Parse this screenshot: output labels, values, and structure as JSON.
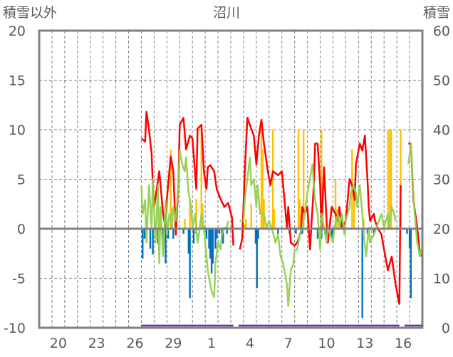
{
  "chart_data": {
    "type": "line",
    "title": "沼川",
    "left_axis_label": "積雪以外",
    "right_axis_label": "積雪",
    "ylim": [
      -10,
      20
    ],
    "y2lim": [
      0,
      60
    ],
    "yticks": [
      "20",
      "15",
      "10",
      "5",
      "0",
      "-5",
      "-10"
    ],
    "y2ticks": [
      "60",
      "50",
      "40",
      "30",
      "20",
      "10",
      "0"
    ],
    "xlim_days": [
      0,
      30
    ],
    "xtick_labels": [
      {
        "day": 1.5,
        "label": "20"
      },
      {
        "day": 4.5,
        "label": "23"
      },
      {
        "day": 7.5,
        "label": "26"
      },
      {
        "day": 10.5,
        "label": "29"
      },
      {
        "day": 13.5,
        "label": "1"
      },
      {
        "day": 16.5,
        "label": "4"
      },
      {
        "day": 19.5,
        "label": "7"
      },
      {
        "day": 22.5,
        "label": "10"
      },
      {
        "day": 25.5,
        "label": "13"
      },
      {
        "day": 28.5,
        "label": "16"
      }
    ],
    "grid": true,
    "colors": {
      "red": "#ff0000",
      "green": "#92d050",
      "blue": "#0070c0",
      "orange": "#ffc000",
      "purple": "#7030a0",
      "axis": "#808080"
    },
    "series": [
      {
        "name": "red-line",
        "color": "#ff0000",
        "points": [
          [
            8.0,
            9.1
          ],
          [
            8.3,
            8.8
          ],
          [
            8.4,
            11.8
          ],
          [
            8.6,
            10.0
          ],
          [
            8.8,
            7.6
          ],
          [
            8.9,
            4.4
          ],
          [
            9.0,
            2.2
          ],
          [
            9.4,
            5.8
          ],
          [
            9.5,
            4.4
          ],
          [
            9.7,
            1.5
          ],
          [
            9.9,
            0.0
          ],
          [
            10.0,
            3.0
          ],
          [
            10.3,
            7.3
          ],
          [
            10.5,
            5.8
          ],
          [
            10.7,
            -0.6
          ],
          [
            10.9,
            4.4
          ],
          [
            11.0,
            10.5
          ],
          [
            11.3,
            11.2
          ],
          [
            11.5,
            8.0
          ],
          [
            11.8,
            9.4
          ],
          [
            12.0,
            9.1
          ],
          [
            12.3,
            4.0
          ],
          [
            12.4,
            10.1
          ],
          [
            12.7,
            10.5
          ],
          [
            12.9,
            5.8
          ],
          [
            13.1,
            4.0
          ],
          [
            13.2,
            6.2
          ],
          [
            13.4,
            6.4
          ],
          [
            13.7,
            5.8
          ],
          [
            13.9,
            4.0
          ],
          [
            14.2,
            3.0
          ],
          [
            14.5,
            2.2
          ],
          [
            14.8,
            2.6
          ],
          [
            15.1,
            1.1
          ],
          [
            15.2,
            -1.7
          ],
          null,
          [
            15.7,
            -2.1
          ],
          [
            15.9,
            -1.0
          ],
          [
            16.1,
            5.8
          ],
          [
            16.3,
            11.2
          ],
          [
            16.6,
            10.1
          ],
          [
            16.8,
            9.4
          ],
          [
            17.0,
            6.5
          ],
          [
            17.2,
            9.4
          ],
          [
            17.4,
            11.0
          ],
          [
            17.6,
            8.6
          ],
          [
            17.9,
            5.8
          ],
          [
            18.1,
            4.4
          ],
          [
            18.3,
            5.8
          ],
          [
            18.7,
            5.4
          ],
          [
            19.0,
            5.8
          ],
          [
            19.2,
            3.0
          ],
          [
            19.4,
            0.1
          ],
          [
            19.5,
            2.2
          ],
          [
            19.7,
            -1.4
          ],
          [
            20.0,
            -1.7
          ],
          [
            20.2,
            -1.4
          ],
          [
            20.5,
            -0.3
          ],
          [
            20.6,
            2.2
          ],
          [
            20.8,
            1.5
          ],
          [
            21.0,
            2.2
          ],
          [
            21.2,
            -2.1
          ],
          [
            21.5,
            4.4
          ],
          [
            21.6,
            8.6
          ],
          [
            21.8,
            8.6
          ],
          [
            22.0,
            4.4
          ],
          [
            22.1,
            0.1
          ],
          [
            22.3,
            6.2
          ],
          [
            22.5,
            0.8
          ],
          [
            22.6,
            -1.4
          ],
          [
            22.9,
            2.2
          ],
          [
            23.2,
            1.5
          ],
          [
            23.4,
            0.8
          ],
          [
            23.5,
            2.2
          ],
          [
            23.7,
            0.1
          ],
          [
            24.0,
            0.8
          ],
          [
            24.3,
            5.0
          ],
          [
            24.5,
            4.4
          ],
          [
            24.7,
            2.9
          ],
          [
            24.8,
            6.5
          ],
          [
            25.1,
            8.6
          ],
          [
            25.3,
            7.9
          ],
          [
            25.5,
            9.4
          ],
          [
            25.7,
            5.0
          ],
          [
            25.8,
            2.2
          ],
          [
            25.9,
            0.8
          ],
          [
            26.2,
            1.5
          ],
          [
            26.3,
            0.8
          ],
          [
            26.5,
            0.1
          ],
          [
            26.8,
            -0.6
          ],
          [
            27.0,
            -2.1
          ],
          [
            27.3,
            -4.2
          ],
          [
            27.6,
            -2.8
          ],
          [
            27.9,
            -5.6
          ],
          [
            28.2,
            -7.6
          ],
          [
            28.3,
            4.4
          ],
          null,
          [
            28.9,
            8.6
          ],
          [
            29.1,
            8.6
          ],
          [
            29.3,
            2.9
          ],
          [
            29.6,
            0.1
          ],
          [
            29.8,
            -2.4
          ],
          [
            29.9,
            -2.8
          ]
        ]
      },
      {
        "name": "green-line",
        "color": "#92d050",
        "points": [
          [
            8.0,
            4.4
          ],
          [
            8.1,
            1.5
          ],
          [
            8.3,
            2.9
          ],
          [
            8.4,
            -1.4
          ],
          [
            8.6,
            4.4
          ],
          [
            8.8,
            0.1
          ],
          [
            8.9,
            5.0
          ],
          [
            9.1,
            -1.4
          ],
          [
            9.3,
            4.4
          ],
          [
            9.4,
            -3.5
          ],
          [
            9.5,
            2.2
          ],
          [
            9.7,
            -2.8
          ],
          [
            9.9,
            2.9
          ],
          [
            10.0,
            -0.6
          ],
          [
            10.2,
            1.5
          ],
          [
            10.4,
            0.1
          ],
          [
            10.5,
            2.2
          ],
          [
            10.7,
            0.8
          ],
          [
            10.9,
            4.4
          ],
          [
            11.0,
            7.9
          ],
          [
            11.2,
            6.5
          ],
          [
            11.4,
            5.8
          ],
          [
            11.5,
            7.2
          ],
          [
            11.7,
            3.6
          ],
          [
            11.9,
            2.2
          ],
          [
            12.0,
            0.1
          ],
          [
            12.2,
            1.5
          ],
          [
            12.4,
            -1.4
          ],
          [
            12.5,
            -0.6
          ],
          [
            12.7,
            1.5
          ],
          [
            12.9,
            0.1
          ],
          [
            13.1,
            -2.8
          ],
          [
            13.2,
            -4.2
          ],
          [
            13.3,
            -5.0
          ],
          [
            13.5,
            -6.3
          ],
          [
            13.7,
            -6.9
          ],
          [
            13.8,
            -3.5
          ],
          [
            14.0,
            -1.4
          ],
          [
            14.2,
            -2.1
          ],
          [
            14.3,
            -0.6
          ],
          [
            14.5,
            0.1
          ],
          [
            14.7,
            0.1
          ],
          [
            14.8,
            0.8
          ],
          null,
          [
            15.7,
            0.8
          ],
          [
            16.0,
            0.8
          ],
          [
            16.1,
            2.9
          ],
          [
            16.3,
            5.0
          ],
          [
            16.5,
            7.2
          ],
          [
            16.6,
            4.4
          ],
          [
            16.8,
            5.0
          ],
          [
            17.0,
            2.2
          ],
          [
            17.1,
            4.4
          ],
          [
            17.3,
            1.5
          ],
          [
            17.6,
            1.5
          ],
          [
            17.8,
            0.1
          ],
          [
            18.0,
            0.8
          ],
          [
            18.2,
            0.1
          ],
          [
            18.5,
            -1.4
          ],
          [
            18.7,
            -0.6
          ],
          [
            18.9,
            -2.8
          ],
          [
            19.1,
            -3.5
          ],
          [
            19.4,
            -5.6
          ],
          [
            19.5,
            -7.8
          ],
          [
            19.7,
            -4.2
          ],
          [
            19.9,
            -3.5
          ],
          [
            20.0,
            -2.1
          ],
          [
            20.2,
            -2.1
          ],
          [
            20.4,
            -0.6
          ],
          [
            20.6,
            0.1
          ],
          [
            20.8,
            1.5
          ],
          [
            21.0,
            3.6
          ],
          [
            21.2,
            5.0
          ],
          [
            21.4,
            6.5
          ],
          [
            21.5,
            4.4
          ],
          [
            21.6,
            2.9
          ],
          [
            21.8,
            1.5
          ],
          [
            22.0,
            -2.1
          ],
          [
            22.1,
            1.5
          ],
          [
            22.3,
            0.1
          ],
          [
            22.5,
            -1.4
          ],
          [
            22.6,
            0.1
          ],
          [
            22.8,
            -0.6
          ],
          [
            23.0,
            -1.4
          ],
          [
            23.1,
            0.1
          ],
          [
            23.4,
            1.5
          ],
          [
            23.5,
            0.1
          ],
          [
            23.7,
            1.5
          ],
          [
            23.9,
            -0.6
          ],
          [
            24.0,
            0.8
          ],
          [
            24.3,
            2.2
          ],
          [
            24.4,
            3.6
          ],
          [
            24.6,
            4.4
          ],
          [
            24.8,
            3.6
          ],
          [
            24.9,
            2.2
          ],
          [
            25.1,
            4.4
          ],
          [
            25.3,
            1.5
          ],
          [
            25.4,
            -0.6
          ],
          [
            25.6,
            -2.8
          ],
          [
            25.8,
            0.1
          ],
          [
            25.9,
            -1.4
          ],
          [
            26.2,
            -0.6
          ],
          [
            26.4,
            0.1
          ],
          [
            26.6,
            0.8
          ],
          [
            26.8,
            1.5
          ],
          [
            27.0,
            0.1
          ],
          [
            27.3,
            1.5
          ],
          [
            27.4,
            0.1
          ],
          [
            27.6,
            2.2
          ],
          [
            27.8,
            1.5
          ],
          [
            27.9,
            0.8
          ],
          null,
          [
            28.9,
            6.5
          ],
          [
            29.1,
            8.6
          ],
          [
            29.3,
            3.6
          ],
          [
            29.4,
            1.5
          ],
          [
            29.6,
            -1.4
          ],
          [
            29.8,
            -2.8
          ],
          [
            29.9,
            -2.1
          ]
        ]
      }
    ],
    "bars": [
      {
        "name": "blue-bars",
        "color": "#0070c0",
        "points": [
          [
            8.1,
            -3
          ],
          [
            8.25,
            -1
          ],
          [
            8.7,
            -2
          ],
          [
            8.9,
            -2.6
          ],
          [
            9.3,
            -1.5
          ],
          [
            9.7,
            -2.5
          ],
          [
            9.9,
            -3.5
          ],
          [
            10.1,
            -1
          ],
          [
            10.5,
            -1
          ],
          [
            11.3,
            -0.5
          ],
          [
            11.7,
            -2.5
          ],
          [
            11.8,
            -7
          ],
          [
            12.1,
            -1.5
          ],
          [
            12.3,
            -0.5
          ],
          [
            13.1,
            -1
          ],
          [
            13.3,
            -2
          ],
          [
            13.4,
            -3
          ],
          [
            13.5,
            -4.5
          ],
          [
            13.6,
            -3.5
          ],
          [
            13.8,
            -2
          ],
          [
            13.9,
            -1
          ],
          [
            14.1,
            -0.5
          ],
          [
            14.3,
            -1
          ],
          [
            14.4,
            -1.5
          ],
          [
            14.7,
            -0.5
          ],
          [
            16.95,
            -1.5
          ],
          [
            17.05,
            -6
          ],
          [
            17.15,
            -1
          ],
          [
            18.7,
            -0.5
          ],
          [
            19.6,
            -0.5
          ],
          [
            20.1,
            -0.5
          ],
          [
            20.6,
            -0.5
          ],
          [
            21.8,
            -1
          ],
          [
            22.1,
            -1
          ],
          [
            22.5,
            -1
          ],
          [
            22.9,
            -1
          ],
          [
            23.0,
            -0.5
          ],
          [
            25.3,
            -9
          ],
          [
            25.4,
            -0.5
          ],
          [
            25.7,
            -0.5
          ],
          [
            26.2,
            -0.5
          ],
          [
            28.8,
            -0.5
          ],
          [
            29.0,
            -2
          ],
          [
            29.1,
            -7
          ]
        ]
      },
      {
        "name": "orange-bars",
        "color": "#ffc000",
        "points": [
          [
            10.3,
            8
          ],
          [
            10.4,
            2
          ],
          [
            11.4,
            1
          ],
          [
            11.8,
            3
          ],
          [
            12.3,
            3
          ],
          [
            12.7,
            10
          ],
          [
            12.8,
            2.5
          ],
          [
            16.1,
            0.5
          ],
          [
            16.2,
            1
          ],
          [
            16.6,
            2.5
          ],
          [
            17.4,
            10
          ],
          [
            17.5,
            8
          ],
          [
            17.6,
            3
          ],
          [
            18.3,
            10
          ],
          [
            18.4,
            2
          ],
          [
            20.3,
            10
          ],
          [
            20.4,
            3
          ],
          [
            20.7,
            10
          ],
          [
            22.1,
            10
          ],
          [
            22.2,
            4
          ],
          [
            23.2,
            5
          ],
          [
            23.3,
            2
          ],
          [
            24.5,
            8
          ],
          [
            24.65,
            3
          ],
          [
            25.4,
            1
          ],
          [
            27.3,
            10
          ],
          [
            27.45,
            10
          ],
          [
            27.55,
            10
          ],
          [
            28.3,
            10
          ]
        ]
      }
    ],
    "snow_depth": {
      "name": "purple-line",
      "color": "#7030a0",
      "segments": [
        [
          8.0,
          15.2,
          0.3
        ],
        [
          15.6,
          28.2,
          0.3
        ],
        [
          28.6,
          30,
          0.3
        ]
      ]
    }
  }
}
